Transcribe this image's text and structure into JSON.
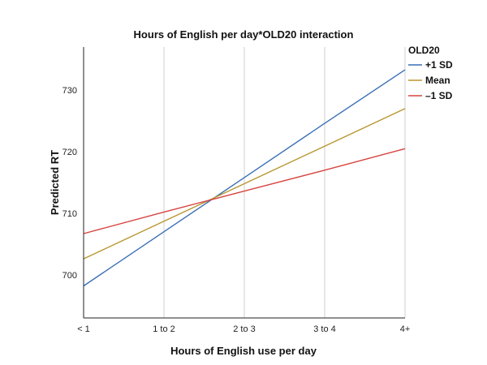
{
  "chart_data": {
    "type": "line",
    "title": "Hours of English per day*OLD20 interaction",
    "xlabel": "Hours of English use per day",
    "ylabel": "Predicted RT",
    "categories": [
      "< 1",
      "1 to 2",
      "2 to 3",
      "3 to 4",
      "4+"
    ],
    "ylim": [
      693,
      737
    ],
    "yticks": [
      700,
      710,
      720,
      730
    ],
    "grid": "vertical",
    "legend_title": "OLD20",
    "legend_position": "top-right",
    "series": [
      {
        "name": "+1 SD",
        "color": "#3b6fb6",
        "values": [
          698.2,
          707.0,
          715.8,
          724.6,
          733.3
        ]
      },
      {
        "name": "Mean",
        "color": "#b8962e",
        "values": [
          702.6,
          708.7,
          714.8,
          720.9,
          727.0
        ]
      },
      {
        "name": "–1 SD",
        "color": "#d64541",
        "values": [
          706.7,
          710.2,
          713.6,
          717.0,
          720.5
        ]
      }
    ]
  }
}
